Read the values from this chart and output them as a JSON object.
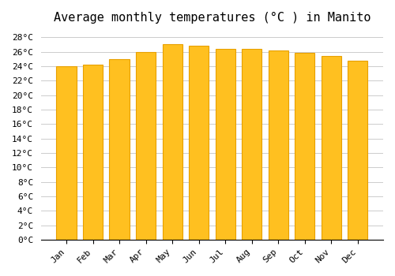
{
  "title": "Average monthly temperatures (°C ) in Manito",
  "months": [
    "Jan",
    "Feb",
    "Mar",
    "Apr",
    "May",
    "Jun",
    "Jul",
    "Aug",
    "Sep",
    "Oct",
    "Nov",
    "Dec"
  ],
  "values": [
    24.0,
    24.2,
    25.0,
    26.0,
    27.0,
    26.8,
    26.4,
    26.4,
    26.2,
    25.8,
    25.4,
    24.8
  ],
  "bar_color": "#FFC020",
  "bar_edge_color": "#E8A000",
  "background_color": "#FFFFFF",
  "grid_color": "#CCCCCC",
  "ylim": [
    0,
    29
  ],
  "ytick_step": 2,
  "title_fontsize": 11,
  "tick_fontsize": 8,
  "font_family": "monospace"
}
